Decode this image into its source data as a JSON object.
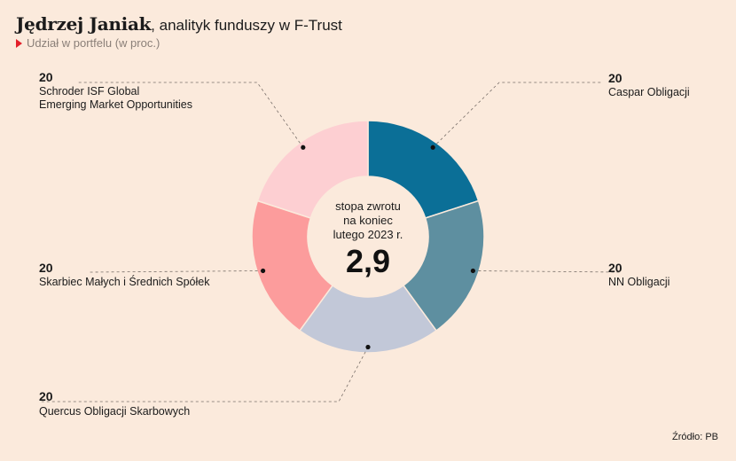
{
  "header": {
    "name": "Jędrzej Janiak",
    "role": ", analityk funduszy w F-Trust",
    "subtitle": "Udział w portfelu (w proc.)"
  },
  "center": {
    "line1": "stopa zwrotu",
    "line2": "na koniec",
    "line3": "lutego 2023 r.",
    "value": "2,9"
  },
  "source": "Źródło: PB",
  "chart_data": {
    "type": "pie",
    "subtitle": "Udział w portfelu (w proc.)",
    "slices": [
      {
        "name": "Caspar Obligacji",
        "value": 20,
        "color": "#0b6f97"
      },
      {
        "name": "NN Obligacji",
        "value": 20,
        "color": "#5e8fa0"
      },
      {
        "name": "Quercus Obligacji Skarbowych",
        "value": 20,
        "color": "#c2c8d8"
      },
      {
        "name": "Skarbiec Małych i Średnich Spółek",
        "value": 20,
        "color": "#fc9c9c"
      },
      {
        "name": "Schroder ISF Global Emerging Market Opportunities",
        "value": 20,
        "color": "#fdcfd2"
      }
    ]
  }
}
